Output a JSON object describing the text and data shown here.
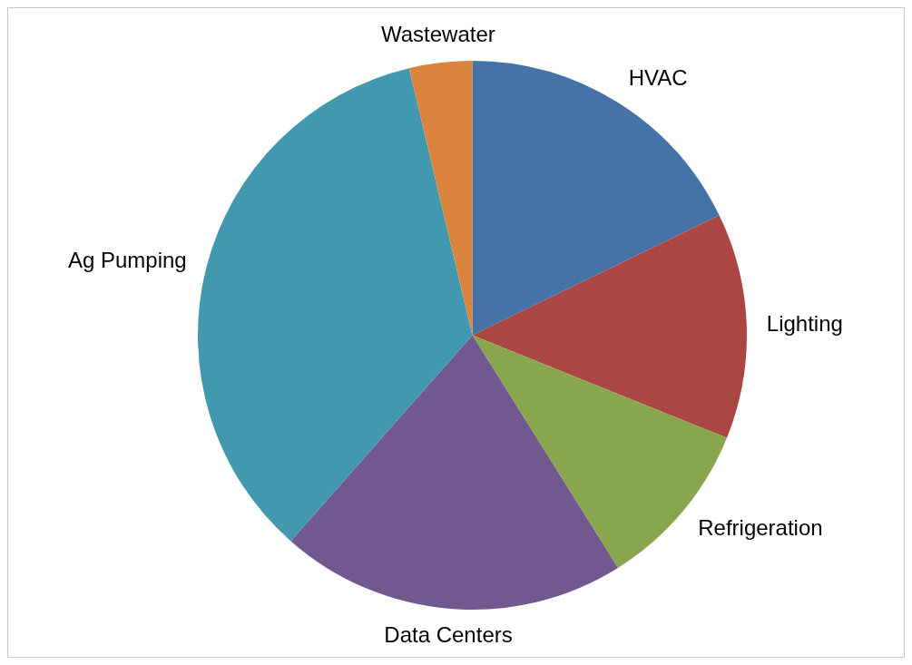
{
  "chart_data": {
    "type": "pie",
    "categories": [
      "HVAC",
      "Lighting",
      "Refrigeration",
      "Data Centers",
      "Ag Pumping",
      "Wastewater"
    ],
    "values": [
      17.8,
      13.3,
      10.0,
      20.4,
      34.8,
      3.7
    ],
    "colors": [
      "#4572a7",
      "#aa4643",
      "#89a54e",
      "#71588f",
      "#4198af",
      "#db843d"
    ]
  }
}
